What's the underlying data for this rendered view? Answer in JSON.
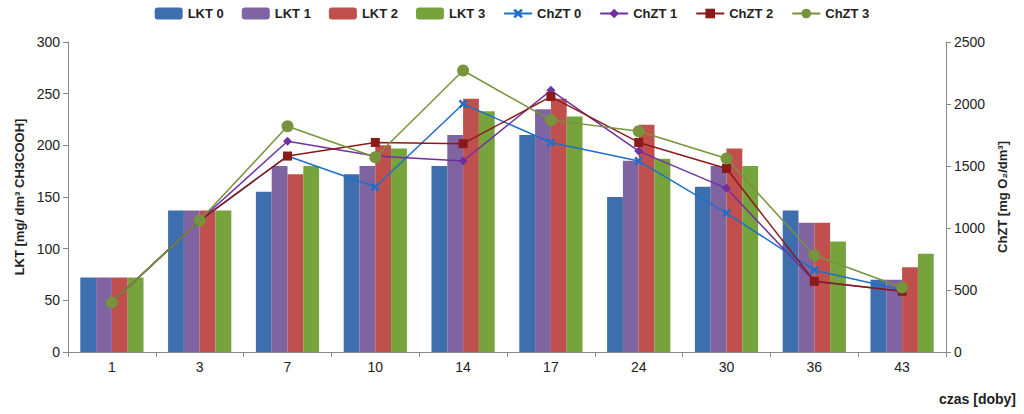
{
  "chart_data": {
    "type": "bar",
    "xlabel": "czas [doby]",
    "ylabel": "LKT [mg/ dm³ CH3COOH]",
    "y2label": "ChZT [mg O₂/dm³]",
    "categories": [
      "1",
      "3",
      "7",
      "10",
      "14",
      "17",
      "24",
      "30",
      "36",
      "43"
    ],
    "ylim": [
      0,
      300
    ],
    "yticks": [
      0,
      50,
      100,
      150,
      200,
      250,
      300
    ],
    "y2lim": [
      0,
      2500
    ],
    "y2ticks": [
      0,
      500,
      1000,
      1500,
      2000,
      2500
    ],
    "grid": false,
    "legend": "top",
    "series": [
      {
        "name": "LKT 0",
        "type": "bar",
        "color": "#3d6eae",
        "values": [
          72,
          137,
          155,
          172,
          180,
          210,
          150,
          160,
          137,
          70
        ]
      },
      {
        "name": "LKT 1",
        "type": "bar",
        "color": "#8064a2",
        "values": [
          72,
          137,
          180,
          180,
          210,
          235,
          185,
          180,
          125,
          70
        ]
      },
      {
        "name": "LKT 2",
        "type": "bar",
        "color": "#c0504d",
        "values": [
          72,
          137,
          172,
          200,
          245,
          245,
          220,
          197,
          125,
          82
        ]
      },
      {
        "name": "LKT 3",
        "type": "bar",
        "color": "#77a33c",
        "values": [
          72,
          137,
          180,
          197,
          233,
          228,
          187,
          180,
          107,
          95
        ]
      },
      {
        "name": "ChZT 0",
        "type": "line",
        "axis": "y2",
        "marker": "x",
        "color": "#1f6fc8",
        "values": [
          400,
          1060,
          1580,
          1330,
          2000,
          1690,
          1540,
          1120,
          660,
          500
        ]
      },
      {
        "name": "ChZT 1",
        "type": "line",
        "axis": "y2",
        "marker": "diamond",
        "color": "#7030a0",
        "values": [
          400,
          1060,
          1700,
          1580,
          1540,
          2110,
          1620,
          1320,
          570,
          490
        ]
      },
      {
        "name": "ChZT 2",
        "type": "line",
        "axis": "y2",
        "marker": "square",
        "color": "#8b1a1a",
        "values": [
          400,
          1060,
          1580,
          1690,
          1680,
          2060,
          1690,
          1480,
          570,
          490
        ]
      },
      {
        "name": "ChZT 3",
        "type": "line",
        "axis": "y2",
        "marker": "circle",
        "color": "#77933c",
        "values": [
          400,
          1060,
          1820,
          1570,
          2270,
          1870,
          1780,
          1560,
          780,
          520
        ]
      }
    ]
  }
}
